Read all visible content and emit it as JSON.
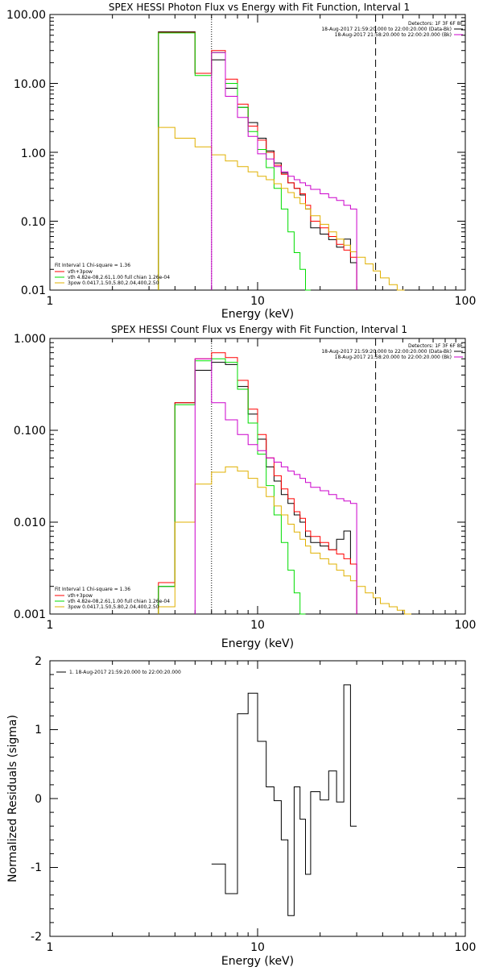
{
  "colors": {
    "data": "#000000",
    "fit": "#ff0000",
    "thermal": "#00dd00",
    "powerlaw": "#e0b000",
    "background": "#cc00cc",
    "axes": "#000000"
  },
  "panels": {
    "photon": {
      "title": "SPEX HESSI Photon Flux vs Energy with Fit Function, Interval 1",
      "info": [
        "Detectors: 1F 3F 6F 8F",
        "18-Aug-2017 21:59:20.000 to 22:00:20.000 (Data-Bk)",
        "18-Aug-2017 21:58:20.000 to 22:00:20.000 (Bk)"
      ],
      "legend": [
        "Fit Interval 1    Chi-square = 1.36",
        "vth+3pow",
        "vth 4.82e-08,2.61,1.00  full chian 1.26e-04",
        "3pow 0.0417,1.50,5.80,2.04,400,2.50"
      ],
      "ylabel": "",
      "xlabel": "Energy (keV)",
      "ytick_labels": [
        "100.00",
        "10.00",
        "1.00",
        "0.10",
        "0.01"
      ],
      "xtick_labels": [
        "1",
        "10",
        "100"
      ]
    },
    "count": {
      "title": "SPEX HESSI Count Flux vs Energy with Fit Function, Interval 1",
      "info": [
        "Detectors: 1F 3F 6F 8F",
        "18-Aug-2017 21:59:20.000 to 22:00:20.000 (Data-Bk)",
        "18-Aug-2017 21:58:20.000 to 22:00:20.000 (Bk)"
      ],
      "legend": [
        "Fit Interval 1    Chi-square = 1.36",
        "vth+3pow",
        "vth 4.82e-08,2.61,1.00  full chian 1.26e-04",
        "3pow 0.0417,1.50,5.80,2.04,400,2.50"
      ],
      "ylabel": "",
      "xlabel": "Energy (keV)",
      "ytick_labels": [
        "1.000",
        "0.100",
        "0.010",
        "0.001"
      ],
      "xtick_labels": [
        "1",
        "10",
        "100"
      ]
    },
    "resid": {
      "legend": [
        "1. 18-Aug-2017 21:59:20.000 to 22:00:20.000"
      ],
      "ylabel": "Normalized Residuals (sigma)",
      "xlabel": "Energy (keV)",
      "ytick_labels": [
        "2",
        "1",
        "0",
        "-1",
        "-2"
      ],
      "xtick_labels": [
        "1",
        "10",
        "100"
      ]
    }
  },
  "chart_data": [
    {
      "type": "line",
      "step": true,
      "xscale": "log",
      "yscale": "log",
      "xlim": [
        1,
        100
      ],
      "ylim": [
        0.01,
        100
      ],
      "fit_range_keV": [
        6,
        37
      ],
      "x_edges": [
        3.33,
        4.0,
        5.0,
        6.0,
        7.0,
        8.0,
        9.0,
        10.0,
        11.0,
        12.0,
        13.0,
        14.0,
        15.0,
        16.0,
        17.0,
        18.0,
        20.0,
        22.0,
        24.0,
        26.0,
        28.0,
        30.0,
        33.0,
        36.0,
        39.0,
        43.0,
        47.0,
        51.0,
        55.0,
        59.0,
        63.0
      ],
      "series": [
        {
          "color_key": "data",
          "values": [
            56,
            56,
            14,
            22,
            8.5,
            4.5,
            2.7,
            1.6,
            1.05,
            0.7,
            0.5,
            0.36,
            0.3,
            0.24,
            0.15,
            0.08,
            0.065,
            0.054,
            0.042,
            0.055,
            0.025,
            null,
            null,
            null,
            null,
            null,
            null,
            null,
            null,
            null
          ]
        },
        {
          "color_key": "fit",
          "values": [
            55,
            55,
            14,
            30,
            11.5,
            5.0,
            2.4,
            1.5,
            1.0,
            0.65,
            0.48,
            0.36,
            0.3,
            0.25,
            0.17,
            0.1,
            0.08,
            0.06,
            0.046,
            0.038,
            0.03,
            null,
            null,
            null,
            null,
            null,
            null,
            null,
            null,
            null
          ]
        },
        {
          "color_key": "thermal",
          "values": [
            54,
            54,
            13,
            28,
            10,
            4.5,
            2.0,
            1.1,
            0.6,
            0.3,
            0.15,
            0.07,
            0.035,
            0.02,
            0.01,
            null,
            null,
            null,
            null,
            null,
            null,
            null,
            null,
            null,
            null,
            null,
            null,
            null,
            null,
            null
          ]
        },
        {
          "color_key": "powerlaw",
          "values": [
            2.3,
            1.6,
            1.2,
            0.92,
            0.75,
            0.62,
            0.52,
            0.45,
            0.4,
            0.35,
            0.3,
            0.26,
            0.22,
            0.18,
            0.15,
            0.12,
            0.09,
            0.07,
            0.055,
            0.045,
            0.036,
            0.03,
            0.024,
            0.019,
            0.015,
            0.012,
            0.01,
            null,
            null,
            null
          ]
        },
        {
          "color_key": "background",
          "values": [
            null,
            null,
            null,
            28,
            6.5,
            3.2,
            1.7,
            0.95,
            0.8,
            0.62,
            0.52,
            0.45,
            0.4,
            0.36,
            0.33,
            0.29,
            0.25,
            0.22,
            0.2,
            0.17,
            0.15,
            null,
            null,
            null,
            null,
            null,
            null,
            null,
            null,
            null
          ]
        }
      ]
    },
    {
      "type": "line",
      "step": true,
      "xscale": "log",
      "yscale": "log",
      "xlim": [
        1,
        100
      ],
      "ylim": [
        0.001,
        1
      ],
      "fit_range_keV": [
        6,
        37
      ],
      "x_edges": [
        3.33,
        4.0,
        5.0,
        6.0,
        7.0,
        8.0,
        9.0,
        10.0,
        11.0,
        12.0,
        13.0,
        14.0,
        15.0,
        16.0,
        17.0,
        18.0,
        20.0,
        22.0,
        24.0,
        26.0,
        28.0,
        30.0,
        33.0,
        36.0,
        39.0,
        43.0,
        47.0,
        51.0,
        55.0,
        59.0,
        63.0,
        67.0,
        71.0,
        75.0,
        80.0,
        86.0,
        92.0
      ],
      "series": [
        {
          "color_key": "data",
          "values": [
            0.002,
            0.2,
            0.45,
            0.55,
            0.52,
            0.3,
            0.15,
            0.08,
            0.04,
            0.028,
            0.02,
            0.016,
            0.012,
            0.01,
            0.007,
            0.006,
            0.0055,
            0.005,
            0.0065,
            0.008,
            0.0035,
            null,
            null,
            null,
            null,
            null,
            null,
            null,
            null,
            null,
            null,
            null,
            null,
            null,
            null,
            null
          ]
        },
        {
          "color_key": "fit",
          "values": [
            0.0022,
            0.2,
            0.6,
            0.7,
            0.62,
            0.35,
            0.17,
            0.09,
            0.05,
            0.032,
            0.023,
            0.018,
            0.013,
            0.011,
            0.008,
            0.007,
            0.006,
            0.005,
            0.0045,
            0.004,
            0.0035,
            null,
            null,
            null,
            null,
            null,
            null,
            null,
            null,
            null,
            null,
            null,
            null,
            null,
            null,
            null
          ]
        },
        {
          "color_key": "thermal",
          "values": [
            0.002,
            0.19,
            0.57,
            0.6,
            0.55,
            0.28,
            0.12,
            0.055,
            0.025,
            0.012,
            0.006,
            0.003,
            0.0017,
            0.001,
            null,
            null,
            null,
            null,
            null,
            null,
            null,
            null,
            null,
            null,
            null,
            null,
            null,
            null,
            null,
            null,
            null,
            null,
            null,
            null,
            null,
            null
          ]
        },
        {
          "color_key": "powerlaw",
          "values": [
            0.0012,
            0.01,
            0.026,
            0.035,
            0.04,
            0.036,
            0.03,
            0.024,
            0.019,
            0.015,
            0.012,
            0.0095,
            0.0078,
            0.0065,
            0.0055,
            0.0046,
            0.004,
            0.0035,
            0.003,
            0.0026,
            0.0023,
            0.002,
            0.0017,
            0.0015,
            0.0013,
            0.0012,
            0.0011,
            0.001,
            null,
            null,
            null,
            null,
            null,
            null,
            null,
            null
          ]
        },
        {
          "color_key": "background",
          "values": [
            null,
            null,
            0.6,
            0.2,
            0.13,
            0.09,
            0.07,
            0.06,
            0.05,
            0.045,
            0.04,
            0.036,
            0.033,
            0.03,
            0.027,
            0.024,
            0.022,
            0.02,
            0.018,
            0.017,
            0.016,
            null,
            null,
            null,
            null,
            null,
            null,
            null,
            null,
            null,
            null,
            null,
            null,
            null,
            null,
            null
          ]
        }
      ]
    },
    {
      "type": "line",
      "step": true,
      "xscale": "log",
      "yscale": "linear",
      "xlim": [
        1,
        100
      ],
      "ylim": [
        -2,
        2
      ],
      "x_edges": [
        6.0,
        7.0,
        8.0,
        9.0,
        10.0,
        11.0,
        12.0,
        13.0,
        14.0,
        15.0,
        16.0,
        17.0,
        18.0,
        20.0,
        22.0,
        24.0,
        26.0,
        28.0,
        30.0,
        33.0,
        36.0,
        39.0
      ],
      "series": [
        {
          "color_key": "data",
          "values": [
            -0.95,
            -1.38,
            1.23,
            1.53,
            0.83,
            0.17,
            -0.03,
            -0.6,
            -1.7,
            0.17,
            -0.3,
            -1.1,
            0.1,
            -0.02,
            0.4,
            -0.05,
            1.65,
            -0.4,
            null,
            null,
            null
          ]
        }
      ]
    }
  ]
}
